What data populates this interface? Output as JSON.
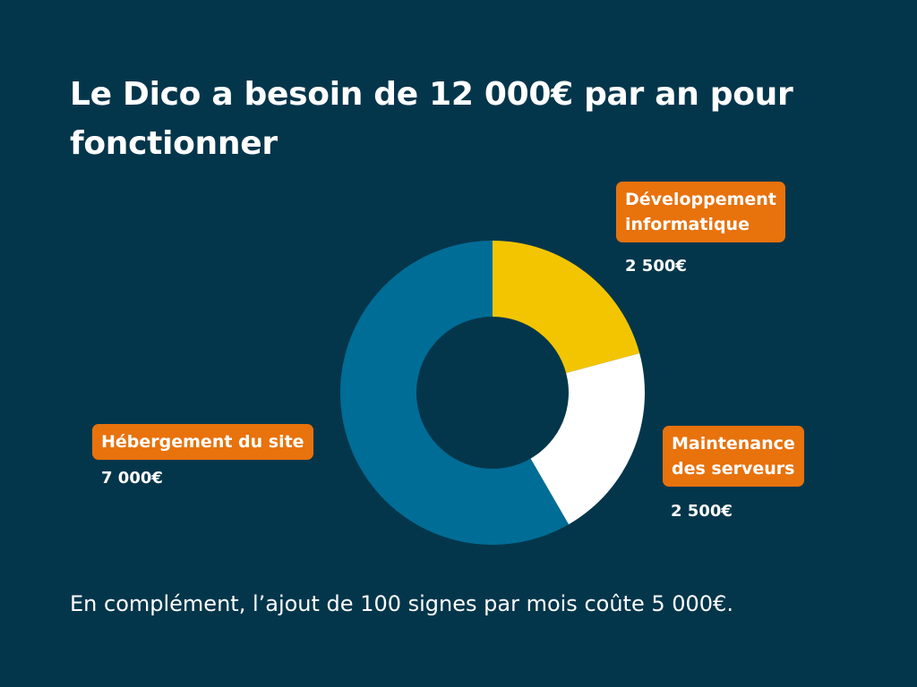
{
  "chart_data": {
    "type": "pie",
    "title": "Le Dico a besoin de 12 000€ par an pour fonctionner",
    "categories": [
      "Développement informatique",
      "Maintenance des serveurs",
      "Hébergement du site"
    ],
    "values": [
      2500,
      2500,
      7000
    ],
    "value_labels": [
      "2 500€",
      "2 500€",
      "7 000€"
    ],
    "colors": [
      "#f2c500",
      "#ffffff",
      "#006d97"
    ],
    "hole": "donut",
    "start": "top, clockwise"
  },
  "labels": {
    "dev": {
      "line1": "Développement",
      "line2": "informatique"
    },
    "maint": {
      "line1": "Maintenance",
      "line2": "des serveurs"
    },
    "host": {
      "line1": "Hébergement du site"
    }
  },
  "footnote": "En complément, l’ajout de 100 signes par mois coûte 5 000€.",
  "colors": {
    "background": "#04364b",
    "label_badge": "#e8720c"
  }
}
